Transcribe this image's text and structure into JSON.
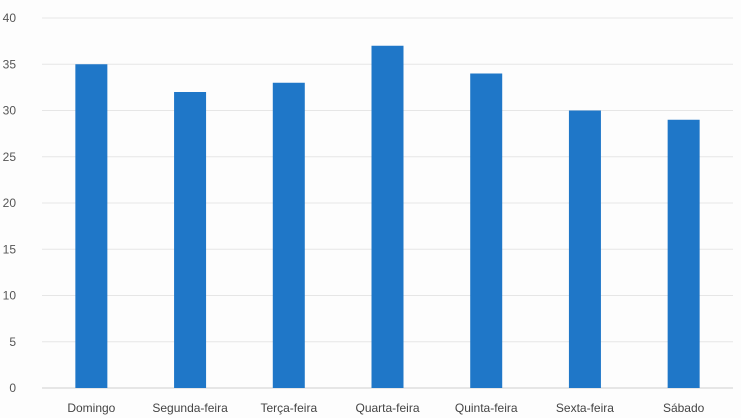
{
  "chart_data": {
    "type": "bar",
    "title": "",
    "xlabel": "",
    "ylabel": "",
    "categories": [
      "Domingo",
      "Segunda-feira",
      "Terça-feira",
      "Quarta-feira",
      "Quinta-feira",
      "Sexta-feira",
      "Sábado"
    ],
    "values": [
      35,
      32,
      33,
      37,
      34,
      30,
      29
    ],
    "ylim": [
      0,
      40
    ],
    "yticks": [
      "0",
      "5",
      "10",
      "15",
      "20",
      "25",
      "30",
      "35",
      "40"
    ],
    "grid": true,
    "legend": "none",
    "bar_color": "#1f77c8"
  }
}
